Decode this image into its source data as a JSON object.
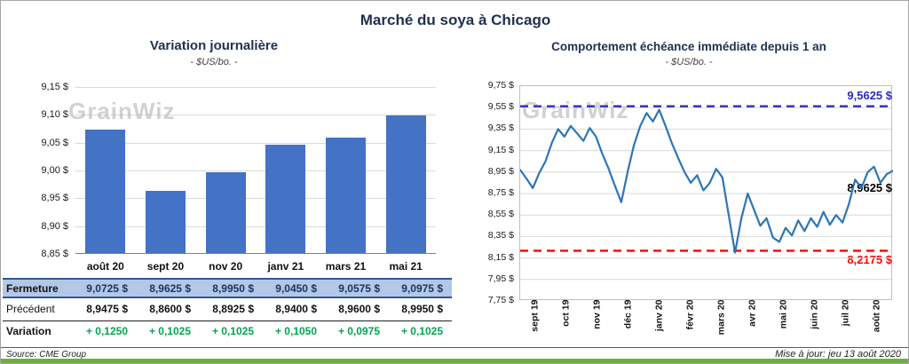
{
  "page": {
    "title": "Marché du soya à Chicago",
    "watermark": "GrainWiz",
    "source": "Source: CME Group",
    "updated": "Mise à jour: jeu 13 août 2020"
  },
  "colors": {
    "navy": "#1F3050",
    "bar": "#4472C4",
    "line": "#2E75B6",
    "grid": "#D9D9D9",
    "axis": "#808080",
    "high": "#2B2BC8",
    "low": "#FF0000",
    "green_text": "#00A550",
    "accent_green": "#70AD47",
    "highlight_bg": "#B4C7E7",
    "highlight_border": "#2F5597",
    "watermark": "#ADADAD"
  },
  "chart_data": [
    {
      "type": "bar",
      "title": "Variation journalière",
      "subtitle": "- $US/bo. -",
      "categories": [
        "août 20",
        "sept 20",
        "nov 20",
        "janv 21",
        "mars 21",
        "mai 21"
      ],
      "values": [
        9.0725,
        8.9625,
        8.995,
        9.045,
        9.0575,
        9.0975
      ],
      "ylim": [
        8.85,
        9.15
      ],
      "ytick_step": 0.05,
      "ytick_labels": [
        "9,15 $",
        "9,10 $",
        "9,05 $",
        "9,00 $",
        "8,95 $",
        "8,90 $",
        "8,85 $"
      ],
      "grid": true,
      "table": {
        "rows": [
          {
            "label": "Fermeture",
            "style": "highlight",
            "values": [
              "9,0725 $",
              "8,9625 $",
              "8,9950 $",
              "9,0450 $",
              "9,0575 $",
              "9,0975 $"
            ]
          },
          {
            "label": "Précédent",
            "style": "plain",
            "values": [
              "8,9475 $",
              "8,8600 $",
              "8,8925 $",
              "8,9400 $",
              "8,9600 $",
              "8,9950 $"
            ]
          },
          {
            "label": "Variation",
            "style": "green",
            "values": [
              "+ 0,1250",
              "+ 0,1025",
              "+ 0,1025",
              "+ 0,1050",
              "+ 0,0975",
              "+ 0,1025"
            ]
          }
        ]
      }
    },
    {
      "type": "line",
      "title": "Comportement échéance immédiate depuis 1 an",
      "subtitle": "- $US/bo. -",
      "x_labels": [
        "sept 19",
        "oct 19",
        "nov 19",
        "déc 19",
        "janv 20",
        "févr 20",
        "mars 20",
        "avr 20",
        "mai 20",
        "juin 20",
        "juil 20",
        "août 20"
      ],
      "ylim": [
        7.75,
        9.75
      ],
      "ytick_step": 0.2,
      "ytick_labels": [
        "9,75 $",
        "9,55 $",
        "9,35 $",
        "9,15 $",
        "8,95 $",
        "8,75 $",
        "8,55 $",
        "8,35 $",
        "8,15 $",
        "7,95 $",
        "7,75 $"
      ],
      "grid": true,
      "values": [
        8.97,
        8.89,
        8.8,
        8.94,
        9.05,
        9.22,
        9.35,
        9.28,
        9.38,
        9.31,
        9.24,
        9.36,
        9.28,
        9.12,
        8.98,
        8.82,
        8.67,
        8.95,
        9.2,
        9.38,
        9.5,
        9.42,
        9.53,
        9.38,
        9.22,
        9.08,
        8.95,
        8.85,
        8.92,
        8.78,
        8.85,
        8.98,
        8.9,
        8.55,
        8.2,
        8.52,
        8.75,
        8.6,
        8.45,
        8.52,
        8.34,
        8.3,
        8.43,
        8.36,
        8.5,
        8.4,
        8.52,
        8.44,
        8.58,
        8.46,
        8.55,
        8.48,
        8.65,
        8.88,
        8.8,
        8.95,
        9.0,
        8.85,
        8.93,
        8.9625
      ],
      "high_line": {
        "value": 9.5625,
        "label": "9,5625 $"
      },
      "low_line": {
        "value": 8.2175,
        "label": "8,2175 $"
      },
      "end_value": 8.9625,
      "end_label": "8,9625 $"
    }
  ]
}
